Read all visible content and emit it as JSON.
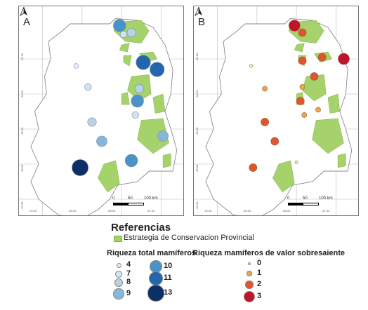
{
  "panels": [
    {
      "id": "A",
      "label": "A"
    },
    {
      "id": "B",
      "label": "B"
    }
  ],
  "axes": {
    "lat_ticks": [
      "-33.00",
      "-34.00",
      "-35.00",
      "-36.00",
      "-37.00"
    ],
    "lon_ticks": [
      "-70.00",
      "-69.00",
      "-68.00",
      "-67.00"
    ]
  },
  "scale_bar": {
    "labels": [
      "0",
      "50",
      "100 km"
    ]
  },
  "legend": {
    "title": "Referencias",
    "area_label": "Estrategia de Conservacion Provincial",
    "total_title": "Riqueza total mamíferos",
    "outstanding_title": "Riqueza mamíferos de valor sobresaiente",
    "total_items": [
      "4",
      "7",
      "8",
      "9",
      "10",
      "11",
      "13"
    ],
    "outstanding_items": [
      "0",
      "1",
      "2",
      "3"
    ]
  },
  "colors": {
    "conservation_area": "#a6d26b",
    "total_scale": [
      "#e8eef5",
      "#d3e4f0",
      "#b6d3e8",
      "#86b7da",
      "#4b93c7",
      "#2366ad",
      "#0d2e66"
    ],
    "outstanding_scale": [
      "#f4f0c2",
      "#eea446",
      "#e2532e",
      "#c0142a"
    ]
  },
  "map_points": {
    "total_richness": [
      {
        "lon": -68.05,
        "lat": -32.05,
        "value": 10
      },
      {
        "lon": -67.95,
        "lat": -32.3,
        "value": 7
      },
      {
        "lon": -67.75,
        "lat": -32.25,
        "value": 8
      },
      {
        "lon": -69.15,
        "lat": -33.2,
        "value": 4
      },
      {
        "lon": -67.45,
        "lat": -33.1,
        "value": 11
      },
      {
        "lon": -67.1,
        "lat": -33.3,
        "value": 11
      },
      {
        "lon": -68.85,
        "lat": -33.8,
        "value": 7
      },
      {
        "lon": -67.55,
        "lat": -33.85,
        "value": 8
      },
      {
        "lon": -67.6,
        "lat": -34.2,
        "value": 10
      },
      {
        "lon": -67.65,
        "lat": -34.6,
        "value": 7
      },
      {
        "lon": -68.75,
        "lat": -34.8,
        "value": 8
      },
      {
        "lon": -68.5,
        "lat": -35.35,
        "value": 9
      },
      {
        "lon": -66.95,
        "lat": -35.2,
        "value": 9
      },
      {
        "lon": -67.75,
        "lat": -35.9,
        "value": 10
      },
      {
        "lon": -69.05,
        "lat": -36.1,
        "value": 13
      }
    ],
    "outstanding_richness": [
      {
        "lon": -68.05,
        "lat": -32.05,
        "value": 3
      },
      {
        "lon": -67.85,
        "lat": -32.25,
        "value": 2
      },
      {
        "lon": -69.15,
        "lat": -33.2,
        "value": 0
      },
      {
        "lon": -67.85,
        "lat": -33.05,
        "value": 2
      },
      {
        "lon": -67.35,
        "lat": -32.95,
        "value": 2
      },
      {
        "lon": -66.8,
        "lat": -33.0,
        "value": 3
      },
      {
        "lon": -67.55,
        "lat": -33.5,
        "value": 2
      },
      {
        "lon": -68.8,
        "lat": -33.85,
        "value": 1
      },
      {
        "lon": -67.85,
        "lat": -33.8,
        "value": 1
      },
      {
        "lon": -67.9,
        "lat": -34.2,
        "value": 2
      },
      {
        "lon": -67.45,
        "lat": -34.45,
        "value": 1
      },
      {
        "lon": -67.8,
        "lat": -34.6,
        "value": 1
      },
      {
        "lon": -68.8,
        "lat": -34.8,
        "value": 2
      },
      {
        "lon": -68.55,
        "lat": -35.35,
        "value": 2
      },
      {
        "lon": -68.0,
        "lat": -35.95,
        "value": 0
      },
      {
        "lon": -69.1,
        "lat": -36.1,
        "value": 2
      }
    ]
  }
}
